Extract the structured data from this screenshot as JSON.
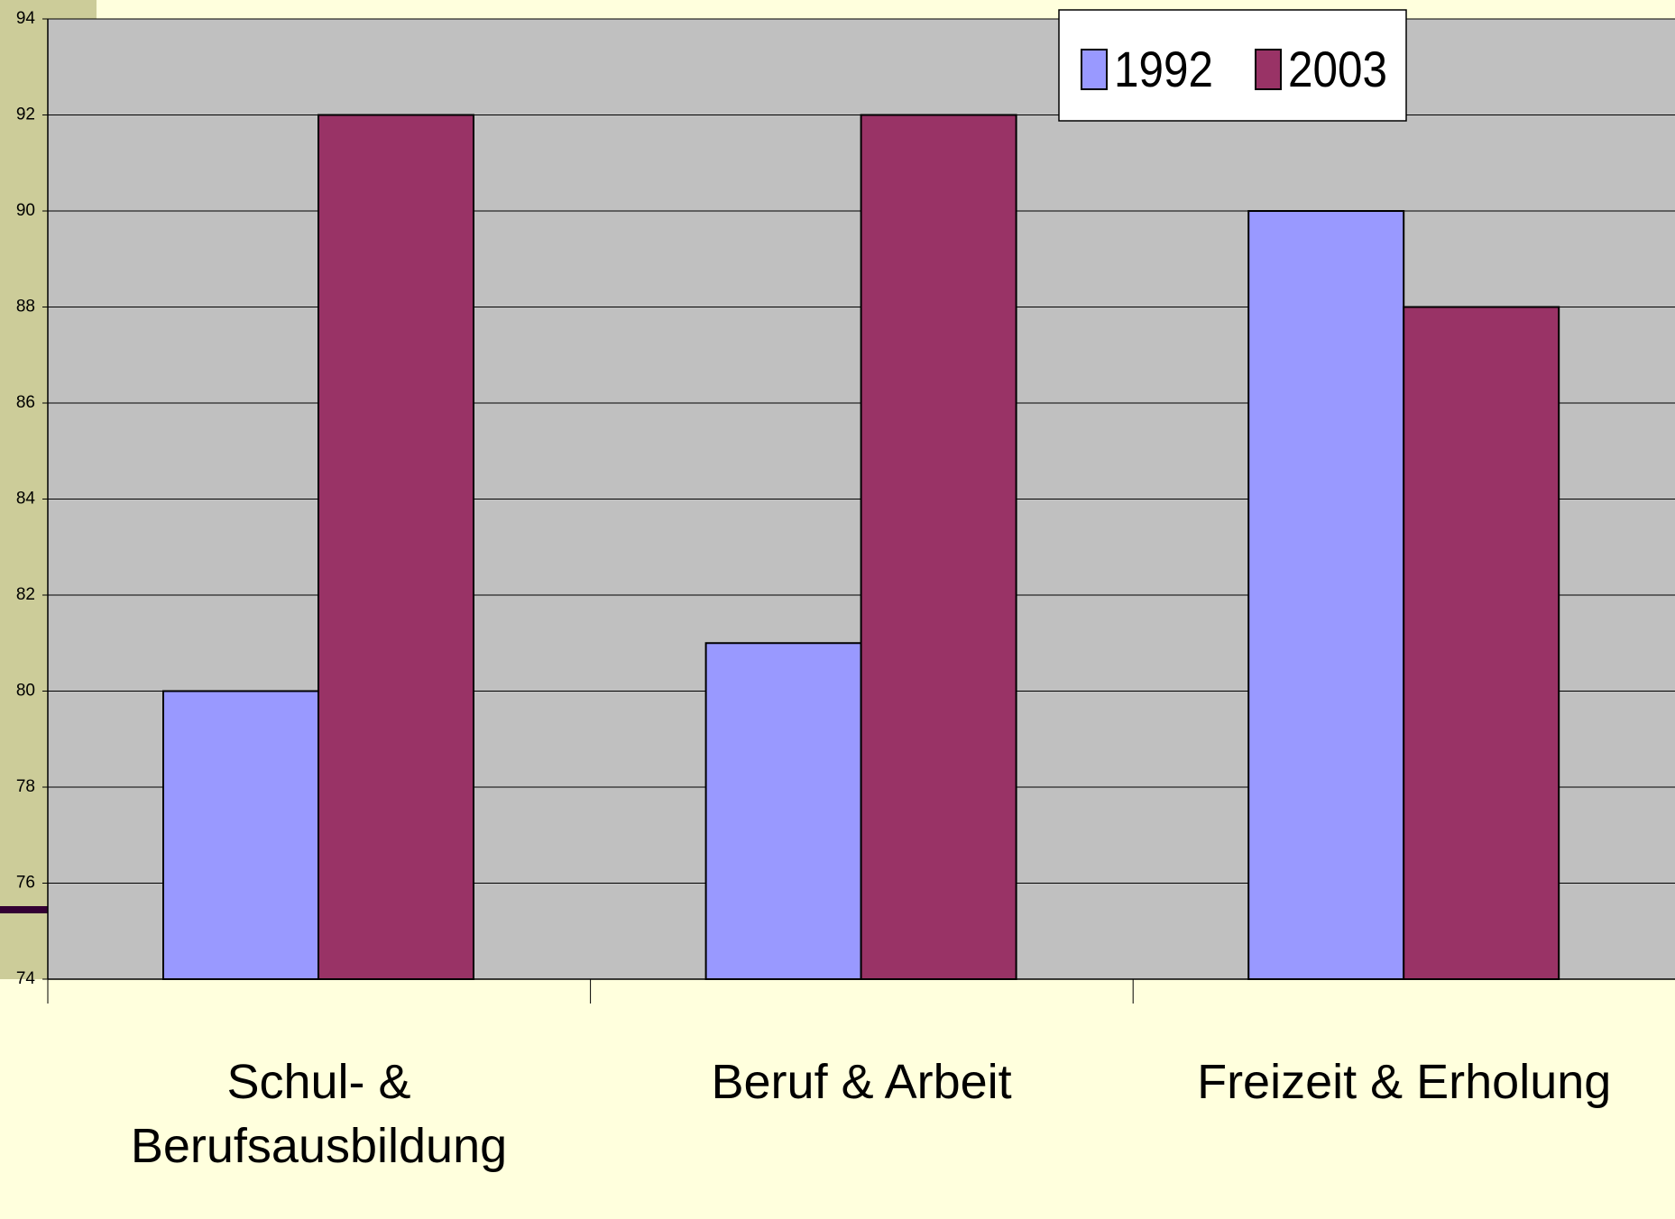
{
  "chart_data": {
    "type": "bar",
    "categories": [
      "Schul- & Berufsausbildung",
      "Beruf & Arbeit",
      "Freizeit & Erholung"
    ],
    "series": [
      {
        "name": "1992",
        "color": "#9999ff",
        "values": [
          80,
          81,
          90
        ]
      },
      {
        "name": "2003",
        "color": "#993366",
        "values": [
          92,
          92,
          88
        ]
      }
    ],
    "ylim": [
      74,
      94
    ],
    "yticks": [
      74,
      76,
      78,
      80,
      82,
      84,
      86,
      88,
      90,
      92,
      94
    ],
    "grid": true,
    "legend": "top-right",
    "plot_color": "#c0c0c0"
  }
}
